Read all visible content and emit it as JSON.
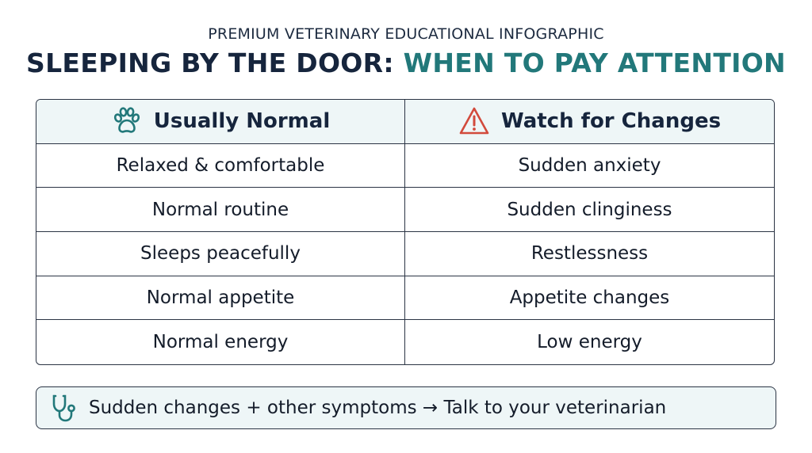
{
  "header": {
    "subtitle": "PREMIUM VETERINARY EDUCATIONAL INFOGRAPHIC",
    "title_part1": "SLEEPING BY THE DOOR: ",
    "title_part2": "WHEN TO PAY ATTENTION"
  },
  "table": {
    "columns": [
      {
        "label": "Usually Normal",
        "icon": "paw-icon"
      },
      {
        "label": "Watch for Changes",
        "icon": "warning-icon"
      }
    ],
    "rows": [
      [
        "Relaxed & comfortable",
        "Sudden anxiety"
      ],
      [
        "Normal routine",
        "Sudden clinginess"
      ],
      [
        "Sleeps peacefully",
        "Restlessness"
      ],
      [
        "Normal appetite",
        "Appetite changes"
      ],
      [
        "Normal energy",
        "Low energy"
      ]
    ]
  },
  "footer": {
    "icon": "stethoscope-icon",
    "text": "Sudden changes + other symptoms → Talk to your veterinarian"
  },
  "colors": {
    "teal": "#22787a",
    "dark_navy": "#16253d",
    "warning_red": "#d24a3c",
    "header_bg": "#eef6f7"
  }
}
